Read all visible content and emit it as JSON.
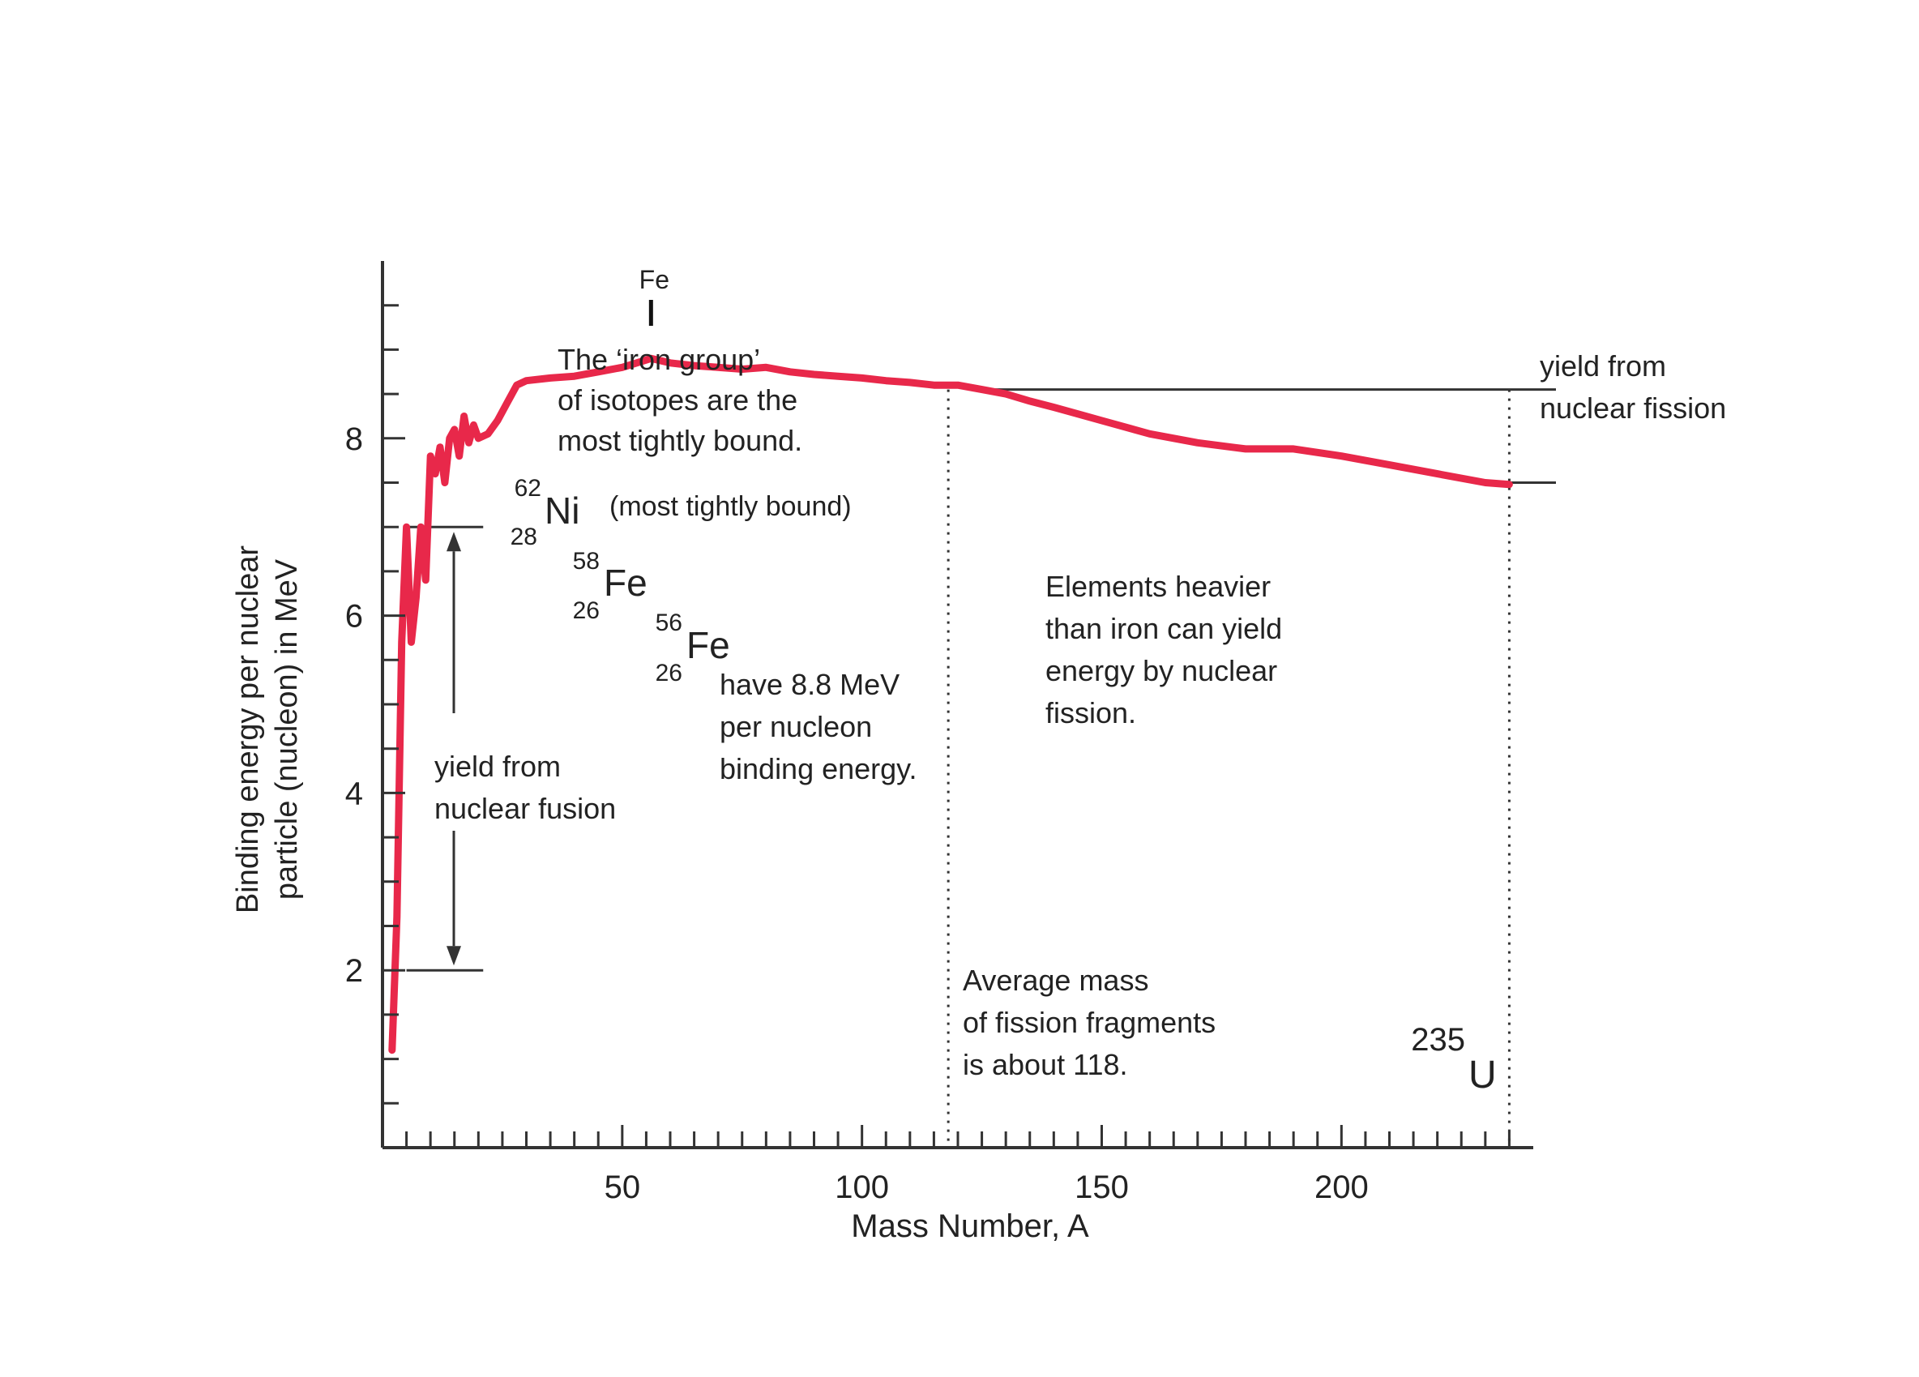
{
  "chart_data": {
    "type": "line",
    "title": "",
    "xlabel": "Mass Number, A",
    "ylabel_lines": [
      "Binding energy per nuclear",
      "particle (nucleon) in MeV"
    ],
    "xlim": [
      0,
      240
    ],
    "ylim": [
      0,
      10
    ],
    "x_ticks": [
      50,
      100,
      150,
      200
    ],
    "y_ticks": [
      2,
      4,
      6,
      8
    ],
    "x_minor_step": 5,
    "y_minor_step": 0.5,
    "grid": false,
    "series": [
      {
        "name": "",
        "color": "#e8284a",
        "x": [
          2,
          3,
          4,
          5,
          6,
          7,
          8,
          9,
          10,
          11,
          12,
          13,
          14,
          15,
          16,
          17,
          18,
          19,
          20,
          22,
          24,
          26,
          28,
          30,
          35,
          40,
          45,
          50,
          53,
          56,
          60,
          65,
          70,
          75,
          80,
          85,
          90,
          95,
          100,
          105,
          110,
          115,
          120,
          125,
          130,
          135,
          140,
          150,
          160,
          170,
          180,
          190,
          200,
          210,
          220,
          230,
          235
        ],
        "y": [
          1.1,
          2.6,
          5.7,
          7.0,
          5.7,
          6.2,
          7.0,
          6.4,
          7.8,
          7.6,
          7.9,
          7.5,
          8.0,
          8.1,
          7.8,
          8.25,
          7.95,
          8.15,
          8.0,
          8.05,
          8.2,
          8.4,
          8.6,
          8.65,
          8.68,
          8.7,
          8.75,
          8.8,
          8.85,
          8.9,
          8.85,
          8.82,
          8.8,
          8.78,
          8.8,
          8.75,
          8.72,
          8.7,
          8.68,
          8.65,
          8.63,
          8.6,
          8.6,
          8.55,
          8.5,
          8.42,
          8.35,
          8.2,
          8.05,
          7.95,
          7.88,
          7.88,
          7.8,
          7.7,
          7.6,
          7.5,
          7.48
        ]
      }
    ],
    "iron_marker": {
      "label": "Fe",
      "x": 56
    },
    "fission_reference": {
      "x_start": 125,
      "x_end": 240,
      "y_top": 8.55,
      "y_bottom": 7.5
    },
    "fusion_reference": {
      "x_start": 5,
      "x_end": 21,
      "y_top": 7.0,
      "y_bottom": 2.0
    },
    "dotted_lines": [
      118,
      235
    ],
    "isotopes": [
      {
        "mass": "62",
        "atomic": "28",
        "symbol": "Ni",
        "note": "(most tightly bound)"
      },
      {
        "mass": "58",
        "atomic": "26",
        "symbol": "Fe",
        "note": ""
      },
      {
        "mass": "56",
        "atomic": "26",
        "symbol": "Fe",
        "note": ""
      }
    ],
    "uranium": {
      "mass": "235",
      "symbol": "U"
    },
    "annotations": {
      "iron_group": [
        "The ‘iron group’",
        "of isotopes are the",
        "most tightly bound."
      ],
      "fe_binding": [
        "have 8.8 MeV",
        "per nucleon",
        "binding energy."
      ],
      "fusion_yield": [
        "yield from",
        "nuclear fusion"
      ],
      "fission_yield": [
        "yield from",
        "nuclear fission"
      ],
      "heavier": [
        "Elements heavier",
        "than iron can yield",
        "energy by nuclear",
        "fission."
      ],
      "fragments": [
        "Average mass",
        "of fission fragments",
        "is about 118."
      ]
    }
  }
}
